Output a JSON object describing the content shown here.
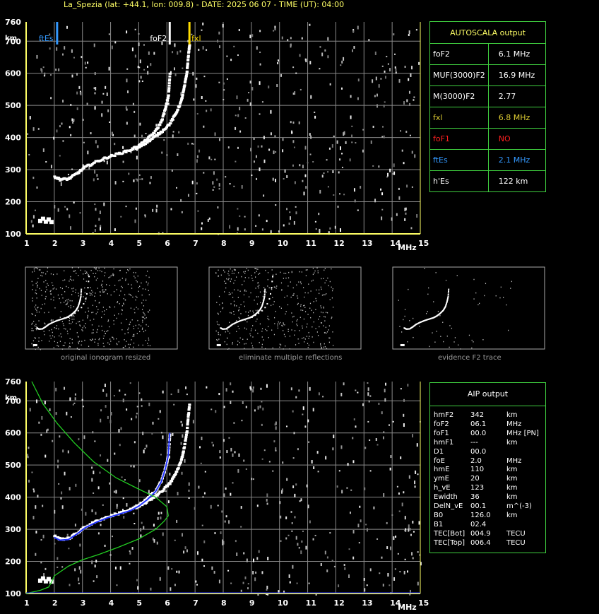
{
  "title": "La_Spezia (lat: +44.1, lon: 009.8) - DATE: 2025 06 07 - TIME (UT): 04:00",
  "colors": {
    "axis": "#ffff66",
    "grid": "#8a8a8a",
    "trace": "#ffffff",
    "fxl": "#ffdd00",
    "ftes": "#3399ff",
    "fof1": "#ff2020",
    "profile": "#22cc22",
    "aip_trace": "#2233ff",
    "border": "#3fcf3f"
  },
  "icons": {
    "fof2_marker": "vertical-white-bar",
    "fxl_marker": "vertical-yellow-bar",
    "ftes_marker": "vertical-blue-bar"
  },
  "chart_data": [
    {
      "type": "scatter",
      "name": "main-ionogram",
      "xlabel": "MHz",
      "ylabel": "km",
      "xlim": [
        1,
        15
      ],
      "ylim": [
        100,
        760
      ],
      "xticks": [
        1,
        2,
        3,
        4,
        5,
        6,
        7,
        8,
        9,
        10,
        11,
        12,
        13,
        14,
        15
      ],
      "yticks": [
        100,
        200,
        300,
        400,
        500,
        600,
        700,
        760
      ],
      "grid": true,
      "markers": [
        {
          "label": "ftEs",
          "x": 2.1
        },
        {
          "label": "foF2",
          "x": 6.1
        },
        {
          "label": "fxl",
          "x": 6.8
        }
      ],
      "trace_o": [
        [
          2.0,
          275
        ],
        [
          2.2,
          266
        ],
        [
          2.5,
          268
        ],
        [
          2.8,
          285
        ],
        [
          3.1,
          305
        ],
        [
          3.5,
          322
        ],
        [
          3.9,
          336
        ],
        [
          4.3,
          347
        ],
        [
          4.7,
          358
        ],
        [
          5.0,
          372
        ],
        [
          5.3,
          392
        ],
        [
          5.6,
          418
        ],
        [
          5.8,
          448
        ],
        [
          5.95,
          490
        ],
        [
          6.05,
          530
        ],
        [
          6.1,
          600
        ]
      ],
      "trace_x": [
        [
          4.9,
          362
        ],
        [
          5.2,
          378
        ],
        [
          5.5,
          395
        ],
        [
          5.8,
          415
        ],
        [
          6.1,
          440
        ],
        [
          6.3,
          470
        ],
        [
          6.5,
          510
        ],
        [
          6.6,
          550
        ],
        [
          6.7,
          600
        ],
        [
          6.75,
          650
        ],
        [
          6.8,
          690
        ]
      ],
      "es_blob": [
        [
          1.5,
          140
        ],
        [
          1.6,
          147
        ],
        [
          1.7,
          138
        ],
        [
          1.8,
          145
        ],
        [
          1.9,
          137
        ]
      ]
    },
    {
      "type": "scatter",
      "name": "aip-ionogram",
      "xlabel": "MHz",
      "ylabel": "km",
      "xlim": [
        1,
        15
      ],
      "ylim": [
        100,
        760
      ],
      "xticks": [
        1,
        2,
        3,
        4,
        5,
        6,
        7,
        8,
        9,
        10,
        11,
        12,
        13,
        14,
        15
      ],
      "yticks": [
        100,
        200,
        300,
        400,
        500,
        600,
        700,
        760
      ],
      "grid": true,
      "profile": [
        [
          1.0,
          100
        ],
        [
          1.5,
          110
        ],
        [
          1.8,
          120
        ],
        [
          1.9,
          135
        ],
        [
          2.0,
          155
        ],
        [
          2.5,
          185
        ],
        [
          3.0,
          205
        ],
        [
          3.6,
          222
        ],
        [
          4.3,
          245
        ],
        [
          5.0,
          270
        ],
        [
          5.6,
          300
        ],
        [
          5.9,
          325
        ],
        [
          6.05,
          342
        ],
        [
          6.0,
          370
        ],
        [
          5.6,
          400
        ],
        [
          5.0,
          425
        ],
        [
          4.2,
          460
        ],
        [
          3.4,
          510
        ],
        [
          2.7,
          570
        ],
        [
          2.1,
          630
        ],
        [
          1.6,
          690
        ],
        [
          1.2,
          760
        ]
      ]
    }
  ],
  "thumbnails": [
    {
      "caption": "original ionogram resized"
    },
    {
      "caption": "eliminate multiple reflections"
    },
    {
      "caption": "evidence F2 trace"
    }
  ],
  "autoscala": {
    "header": "AUTOSCALA output",
    "rows": [
      {
        "label": "foF2",
        "value": "6.1 MHz",
        "color": "#ffffff"
      },
      {
        "label": "MUF(3000)F2",
        "value": "16.9 MHz",
        "color": "#ffffff"
      },
      {
        "label": "M(3000)F2",
        "value": "2.77",
        "color": "#ffffff"
      },
      {
        "label": "fxl",
        "value": "6.8 MHz",
        "color": "#ddcc33"
      },
      {
        "label": "foF1",
        "value": "NO",
        "color": "#ff2020"
      },
      {
        "label": "ftEs",
        "value": "2.1 MHz",
        "color": "#3399ff"
      },
      {
        "label": "h'Es",
        "value": "122    km",
        "color": "#ffffff"
      }
    ]
  },
  "aip": {
    "header": "AIP output",
    "rows": [
      {
        "label": "hmF2",
        "value": "342",
        "unit": "km"
      },
      {
        "label": "foF2",
        "value": "06.1",
        "unit": "MHz"
      },
      {
        "label": "foF1",
        "value": "00.0",
        "unit": "MHz    [PN]"
      },
      {
        "label": "hmF1",
        "value": "---",
        "unit": "km"
      },
      {
        "label": "D1",
        "value": "00.0",
        "unit": ""
      },
      {
        "label": "foE",
        "value": "2.0",
        "unit": "MHz"
      },
      {
        "label": "hmE",
        "value": "110",
        "unit": "km"
      },
      {
        "label": "ymE",
        "value": "20",
        "unit": "km"
      },
      {
        "label": "h_vE",
        "value": "123",
        "unit": "km"
      },
      {
        "label": "Ewidth",
        "value": "36",
        "unit": "km"
      },
      {
        "label": "DelN_vE",
        "value": "00.1",
        "unit": "m^(-3)"
      },
      {
        "label": "B0",
        "value": "126.0",
        "unit": "km"
      },
      {
        "label": "B1",
        "value": "02.4",
        "unit": ""
      },
      {
        "label": "TEC[Bot]",
        "value": "004.9",
        "unit": "TECU"
      },
      {
        "label": "TEC[Top]",
        "value": "006.4",
        "unit": "TECU"
      }
    ]
  }
}
